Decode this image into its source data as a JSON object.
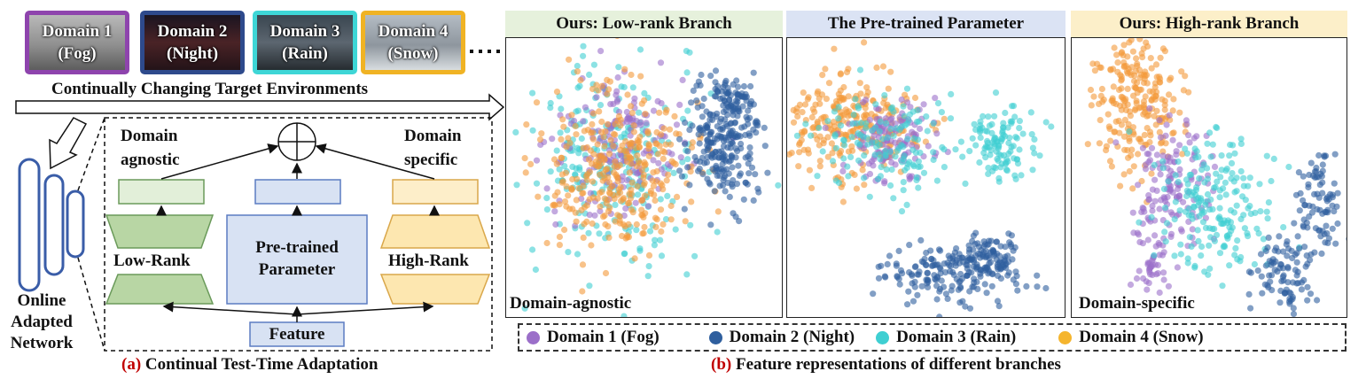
{
  "domains": [
    {
      "name": "Domain 1",
      "cond": "(Fog)",
      "border": "#8e44ad"
    },
    {
      "name": "Domain 2",
      "cond": "(Night)",
      "border": "#2e4a8c"
    },
    {
      "name": "Domain 3",
      "cond": "(Rain)",
      "border": "#3ed6d6"
    },
    {
      "name": "Domain 4",
      "cond": "(Snow)",
      "border": "#f0b324"
    }
  ],
  "target_env_label": "Continually Changing Target Environments",
  "network_label": [
    "Online",
    "Adapted",
    "Network"
  ],
  "diagram": {
    "agnostic_label": [
      "Domain",
      "agnostic"
    ],
    "specific_label": [
      "Domain",
      "specific"
    ],
    "low_rank": "Low-Rank",
    "high_rank": "High-Rank",
    "pretrained": [
      "Pre-trained",
      "Parameter"
    ],
    "feature": "Feature"
  },
  "caption_a": {
    "tag": "(a)",
    "text": "Continual Test-Time Adaptation"
  },
  "caption_b": {
    "tag": "(b)",
    "text": "Feature representations of different branches"
  },
  "panels": [
    {
      "title": "Ours: Low-rank Branch",
      "bg": "#e6f1dc",
      "corner": "Domain-agnostic"
    },
    {
      "title": "The Pre-trained Parameter",
      "bg": "#dbe3f4",
      "corner": ""
    },
    {
      "title": "Ours: High-rank Branch",
      "bg": "#fcefc9",
      "corner": "Domain-specific"
    }
  ],
  "legend": [
    {
      "label": "Domain 1 (Fog)",
      "color": "#9b6fc9"
    },
    {
      "label": "Domain 2 (Night)",
      "color": "#2f5f9e"
    },
    {
      "label": "Domain 3 (Rain)",
      "color": "#3fcfd2"
    },
    {
      "label": "Domain 4 (Snow)",
      "color": "#f39a3a"
    }
  ],
  "colors": {
    "agnostic_fill": "#e2efd9",
    "agnostic_stroke": "#6a9a5a",
    "pretrained_fill": "#d8e2f3",
    "pretrained_stroke": "#5b7cc2",
    "specific_fill": "#fdeec9",
    "specific_stroke": "#d9a74a",
    "network_stroke": "#3a5da8"
  }
}
